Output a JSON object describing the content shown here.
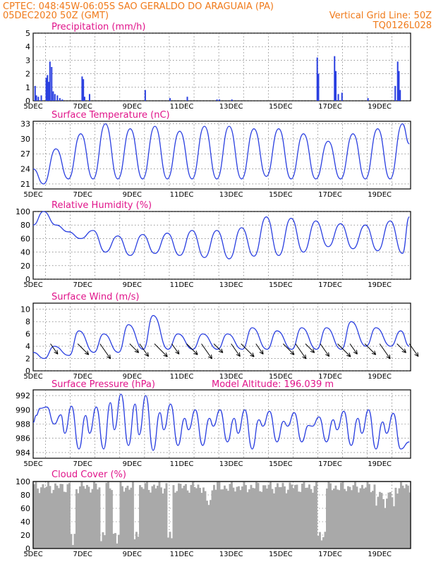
{
  "header": {
    "line1": "CPTEC:  048:45W-06:05S  SAO GERALDO DO ARAGUAIA (PA)",
    "line2_left": "05DEC2020 50Z (GMT)",
    "line2_right": "Vertical Grid Line: 50Z",
    "line3_right": "TQ0126L028"
  },
  "x_ticks": [
    "5DEC",
    "7DEC",
    "9DEC",
    "11DEC",
    "13DEC",
    "15DEC",
    "17DEC",
    "19DEC"
  ],
  "colors": {
    "series": "#2a3fe0",
    "bars": "#2a3fe0",
    "cloud": "#a9a9a9",
    "header": "#f07a1a",
    "title": "#e0148a",
    "arrow": "#000000"
  },
  "chart_data": [
    {
      "type": "bar",
      "title": "Precipitation (mm/h)",
      "ylim": [
        0,
        5
      ],
      "y_ticks": [
        "0",
        "1",
        "2",
        "3",
        "4",
        "5"
      ],
      "x_days": [
        0.05,
        0.1,
        0.18,
        0.3,
        0.5,
        0.55,
        0.6,
        0.65,
        0.72,
        0.78,
        0.85,
        0.95,
        1.05,
        1.15,
        1.95,
        2.0,
        2.05,
        2.25,
        4.5,
        5.5,
        6.2,
        7.4,
        7.5,
        8.0,
        11.45,
        11.5,
        12.15,
        12.2,
        12.3,
        12.45,
        13.5,
        14.6,
        14.7,
        14.75,
        14.8
      ],
      "values": [
        1.1,
        0.4,
        0.3,
        0.4,
        1.7,
        1.9,
        1.4,
        2.9,
        2.5,
        0.7,
        0.5,
        0.4,
        0.2,
        0.1,
        1.8,
        1.6,
        0.3,
        0.5,
        0.8,
        0.2,
        0.3,
        0.1,
        0.1,
        0.1,
        3.2,
        2.0,
        3.3,
        2.2,
        0.5,
        0.6,
        0.2,
        1.1,
        2.9,
        2.2,
        0.8
      ]
    },
    {
      "type": "line",
      "title": "Surface Temperature (nC)",
      "ylim": [
        20,
        33.5
      ],
      "y_ticks": [
        "21",
        "24",
        "27",
        "30",
        "33"
      ],
      "tmin": [
        21,
        22,
        22,
        22,
        22,
        22,
        22,
        22,
        22,
        22.5,
        22,
        22,
        22,
        22,
        22,
        22
      ],
      "tmax": [
        28,
        31,
        33,
        32,
        32.5,
        31.5,
        32.5,
        32.5,
        32,
        32,
        31,
        29.5,
        31,
        32,
        33,
        30
      ]
    },
    {
      "type": "line",
      "title": "Relative Humidity (%)",
      "ylim": [
        0,
        100
      ],
      "y_ticks": [
        "0",
        "20",
        "40",
        "60",
        "80",
        "100"
      ],
      "rh_max": [
        100,
        70,
        72,
        64,
        66,
        68,
        72,
        72,
        76,
        92,
        90,
        86,
        82,
        80,
        86,
        92
      ],
      "rh_min": [
        80,
        60,
        40,
        35,
        38,
        35,
        32,
        30,
        34,
        35,
        40,
        48,
        45,
        42,
        38,
        40
      ]
    },
    {
      "type": "line",
      "title": "Surface Wind (m/s)",
      "ylim": [
        0,
        11
      ],
      "y_ticks": [
        "0",
        "2",
        "4",
        "6",
        "8",
        "10"
      ],
      "wind_max": [
        4,
        6.5,
        6,
        7.5,
        9,
        6,
        6,
        6,
        7,
        6.5,
        7,
        7,
        8,
        7,
        6.5,
        6
      ],
      "wind_min": [
        2,
        2.5,
        3,
        3,
        3.5,
        3.5,
        3.5,
        3.5,
        3.5,
        3.5,
        3.5,
        3.5,
        3.5,
        4,
        4,
        4
      ],
      "barb_days": [
        0.7,
        1.8,
        2.7,
        3.9,
        4.3,
        4.9,
        5.6,
        6.2,
        6.8,
        7.3,
        8.0,
        8.4,
        9.0,
        10.1,
        10.6,
        11.0,
        11.6,
        12.3,
        12.8,
        13.4,
        14.0,
        14.7,
        15.2
      ]
    },
    {
      "type": "line",
      "title": "Surface Pressure (hPa)",
      "annotation": "Model Altitude: 196.039 m",
      "ylim": [
        983.2,
        992.8
      ],
      "y_ticks": [
        "984",
        "986",
        "988",
        "990",
        "992"
      ],
      "p_high": [
        990.4,
        990.5,
        990.4,
        992.2,
        992.0,
        990.8,
        990.0,
        990.0,
        990.0,
        989.8,
        989.6,
        989.0,
        989.8,
        990.0,
        989.5,
        989.0
      ],
      "p_low": [
        988.0,
        984.5,
        984.5,
        985.0,
        984.3,
        985.0,
        985.0,
        985.5,
        984.5,
        985.5,
        985.5,
        985.5,
        985.0,
        984.5,
        984.5,
        983.5
      ]
    },
    {
      "type": "area",
      "title": "Cloud Cover (%)",
      "ylim": [
        0,
        100
      ],
      "y_ticks": [
        "0",
        "20",
        "40",
        "60",
        "80",
        "100"
      ],
      "low_days": [
        1.5,
        1.6,
        2.75,
        2.85,
        3.2,
        3.3,
        3.4,
        4.1,
        4.2,
        5.45,
        5.55,
        11.5,
        11.6,
        11.7,
        14.3,
        14.4
      ]
    }
  ]
}
